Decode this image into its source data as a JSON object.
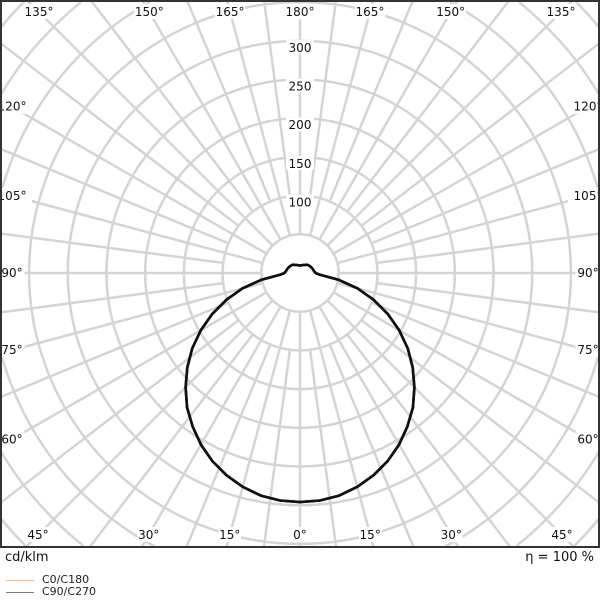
{
  "chart_data": {
    "type": "polar",
    "unit_label": "cd/klm",
    "efficiency_label": "η = 100 %",
    "radial_ticks": [
      100,
      150,
      200,
      250,
      300
    ],
    "radial_grid_step": 50,
    "angular_grid_step_deg": 15,
    "angle_labels": [
      {
        "angle": 135,
        "side": "left",
        "text": "135°"
      },
      {
        "angle": 150,
        "side": "left",
        "text": "150°"
      },
      {
        "angle": 165,
        "side": "left",
        "text": "165°"
      },
      {
        "angle": 180,
        "side": "right",
        "text": "180°"
      },
      {
        "angle": 165,
        "side": "right",
        "text": "165°"
      },
      {
        "angle": 150,
        "side": "right",
        "text": "150°"
      },
      {
        "angle": 135,
        "side": "right",
        "text": "135°"
      },
      {
        "angle": 120,
        "side": "left",
        "text": "120°"
      },
      {
        "angle": 105,
        "side": "left",
        "text": "105°"
      },
      {
        "angle": 90,
        "side": "left",
        "text": "90°"
      },
      {
        "angle": 75,
        "side": "left",
        "text": "75°"
      },
      {
        "angle": 60,
        "side": "left",
        "text": "60°"
      },
      {
        "angle": 120,
        "side": "right",
        "text": "120°"
      },
      {
        "angle": 105,
        "side": "right",
        "text": "105°"
      },
      {
        "angle": 90,
        "side": "right",
        "text": "90°"
      },
      {
        "angle": 75,
        "side": "right",
        "text": "75°"
      },
      {
        "angle": 60,
        "side": "right",
        "text": "60°"
      },
      {
        "angle": 45,
        "side": "left",
        "text": "45°"
      },
      {
        "angle": 30,
        "side": "left",
        "text": "30°"
      },
      {
        "angle": 15,
        "side": "left",
        "text": "15°"
      },
      {
        "angle": 0,
        "side": "right",
        "text": "0°"
      },
      {
        "angle": 15,
        "side": "right",
        "text": "15°"
      },
      {
        "angle": 30,
        "side": "right",
        "text": "30°"
      },
      {
        "angle": 45,
        "side": "right",
        "text": "45°"
      }
    ],
    "angles_deg": [
      0,
      5,
      10,
      15,
      20,
      25,
      30,
      35,
      40,
      45,
      50,
      55,
      60,
      65,
      70,
      75,
      80,
      85,
      90,
      100,
      110,
      120,
      130,
      140,
      150,
      160,
      170,
      180
    ],
    "series": [
      {
        "name": "C0/C180",
        "color": "#f3b77f",
        "values": [
          296,
          295,
          292,
          286,
          278,
          268,
          256,
          242,
          227,
          209,
          190,
          170,
          148,
          125,
          101,
          77,
          51,
          26,
          20,
          18,
          17,
          16,
          15,
          14,
          12,
          11,
          10,
          10
        ]
      },
      {
        "name": "C90/C270",
        "color": "#7a7a7a",
        "values": [
          296,
          295,
          292,
          286,
          278,
          268,
          256,
          242,
          227,
          209,
          190,
          170,
          148,
          125,
          101,
          77,
          51,
          26,
          20,
          18,
          17,
          16,
          15,
          14,
          12,
          11,
          10,
          10
        ]
      }
    ],
    "curve_color": "#111111",
    "grid_color": "#d4d4d4"
  }
}
